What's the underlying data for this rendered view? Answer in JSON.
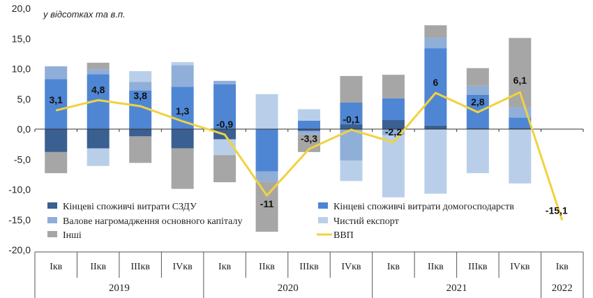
{
  "chart_data": {
    "type": "bar",
    "stacked": true,
    "unit_label": "у відсотках та в.п.",
    "ylim": [
      -20,
      20
    ],
    "yticks": [
      20,
      15,
      10,
      5,
      0,
      -5,
      -10,
      -15,
      -20
    ],
    "ytick_labels": [
      "20,0",
      "15,0",
      "10,0",
      "5,0",
      "0,0",
      "-5,0",
      "-10,0",
      "-15,0",
      "-20,0"
    ],
    "categories": [
      "Ікв",
      "ІІкв",
      "ІІІкв",
      "IVкв",
      "Ікв",
      "ІІкв",
      "ІІІкв",
      "IVкв",
      "Ікв",
      "ІІкв",
      "ІІІкв",
      "IVкв",
      "Ікв"
    ],
    "years": [
      {
        "label": "2019",
        "count": 4
      },
      {
        "label": "2020",
        "count": 4
      },
      {
        "label": "2021",
        "count": 4
      },
      {
        "label": "2022",
        "count": 1
      }
    ],
    "series": [
      {
        "name": "Кінцеві  споживчі витрати СЗДУ",
        "color": "#3a5f91",
        "values": [
          -3.8,
          -3.2,
          -1.2,
          -3.2,
          -1.7,
          0.0,
          -0.3,
          0.8,
          1.5,
          0.6,
          0.2,
          0.2,
          null
        ]
      },
      {
        "name": "Кінцеві  споживчі витрати домогосподарств",
        "color": "#4f86d4",
        "values": [
          8.3,
          9.1,
          6.4,
          7.0,
          7.4,
          -7.0,
          1.4,
          3.6,
          3.6,
          12.8,
          5.5,
          1.7,
          null
        ]
      },
      {
        "name": "Валове нагромадження основного капіталу",
        "color": "#8fafd9",
        "values": [
          2.1,
          0.8,
          1.4,
          3.6,
          0.6,
          -1.7,
          -0.6,
          -5.2,
          -1.0,
          1.7,
          1.5,
          1.7,
          null
        ]
      },
      {
        "name": "Чистий експорт",
        "color": "#b9cfe9",
        "values": [
          0.0,
          -2.9,
          1.8,
          0.5,
          -2.6,
          5.8,
          1.9,
          -3.4,
          -10.3,
          -10.7,
          -7.3,
          -9.0,
          null
        ]
      },
      {
        "name": "Інші",
        "color": "#a6a6a6",
        "values": [
          -3.5,
          1.1,
          -4.4,
          -6.7,
          -4.5,
          -8.3,
          -2.9,
          4.4,
          3.9,
          2.1,
          2.9,
          11.5,
          null
        ]
      },
      {
        "name": "ВВП",
        "color": "#f1d23f",
        "type": "line",
        "values": [
          3.1,
          4.8,
          3.8,
          1.3,
          -0.9,
          -11.0,
          -3.3,
          -0.1,
          -2.2,
          6.0,
          2.8,
          6.1,
          -15.1
        ],
        "labels": [
          "3,1",
          "4,8",
          "3,8",
          "1,3",
          "-0,9",
          "-11",
          "-3,3",
          "-0,1",
          "-2,2",
          "6",
          "2,8",
          "6,1",
          "-15,1"
        ]
      }
    ],
    "legend": {
      "placement": "bottom-left, inside plot",
      "items": [
        {
          "name": "Кінцеві  споживчі витрати СЗДУ",
          "color": "#3a5f91",
          "kind": "bar"
        },
        {
          "name": "Кінцеві  споживчі витрати домогосподарств",
          "color": "#4f86d4",
          "kind": "bar"
        },
        {
          "name": "Валове нагромадження основного капіталу",
          "color": "#8fafd9",
          "kind": "bar"
        },
        {
          "name": "Чистий експорт",
          "color": "#b9cfe9",
          "kind": "bar"
        },
        {
          "name": "Інші",
          "color": "#a6a6a6",
          "kind": "bar"
        },
        {
          "name": "ВВП",
          "color": "#f1d23f",
          "kind": "line"
        }
      ]
    },
    "grid": false
  }
}
